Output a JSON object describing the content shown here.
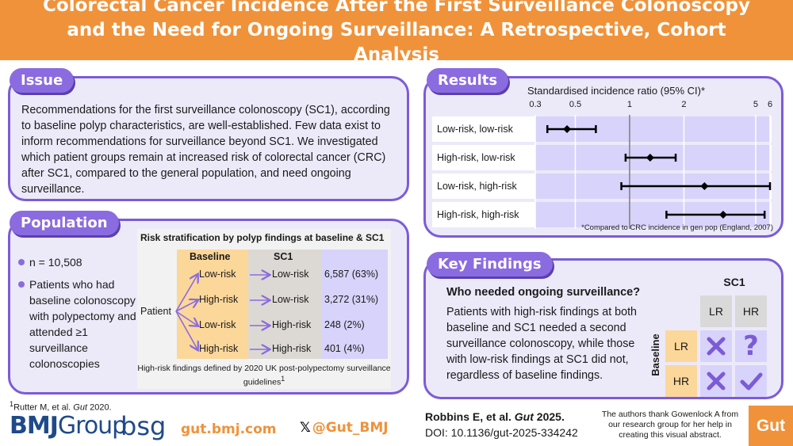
{
  "header": {
    "title": "Colorectal Cancer Incidence After the First Surveillance Colonoscopy and the Need for Ongoing Surveillance: A Retrospective, Cohort Analysis"
  },
  "issue": {
    "label": "Issue",
    "text": "Recommendations for the first surveillance colonoscopy (SC1), according to baseline polyp characteristics, are well-established. Few data exist to inform recommendations for surveillance beyond SC1. We investigated which patient groups remain at increased risk of colorectal cancer (CRC) after SC1, compared to the general population, and need ongoing surveillance."
  },
  "population": {
    "label": "Population",
    "bullets": [
      "n = 10,508",
      "Patients who had baseline colonoscopy with polypectomy and attended ≥1 surveillance colonoscopies"
    ],
    "strat_title": "Risk stratification by polyp findings at baseline & SC1",
    "col_baseline": "Baseline",
    "col_sc1": "SC1",
    "patient": "Patient",
    "rows": [
      {
        "baseline": "Low-risk",
        "sc1": "Low-risk",
        "count": "6,587 (63%)"
      },
      {
        "baseline": "High-risk",
        "sc1": "Low-risk",
        "count": "3,272 (31%)"
      },
      {
        "baseline": "Low-risk",
        "sc1": "High-risk",
        "count": "248 (2%)"
      },
      {
        "baseline": "High-risk",
        "sc1": "High-risk",
        "count": "401 (4%)"
      }
    ],
    "note": "High-risk findings defined by 2020 UK post-polypectomy surveillance guidelines",
    "note_sup": "1"
  },
  "results": {
    "label": "Results",
    "axis_title": "Standardised incidence ratio (95% CI)*",
    "ticks": [
      "0.3",
      "0.5",
      "1",
      "2",
      "5",
      "6"
    ],
    "footnote": "*Compared to CRC incidence in gen pop (England, 2007)"
  },
  "chart_data": {
    "type": "forest",
    "xlabel": "Standardised incidence ratio (95% CI)*",
    "xscale": "log",
    "xlim": [
      0.3,
      6
    ],
    "reference": 1,
    "grid": true,
    "categories": [
      "Low-risk, low-risk",
      "High-risk, low-risk",
      "Low-risk, high-risk",
      "High-risk, high-risk"
    ],
    "estimates": [
      0.45,
      1.3,
      2.6,
      3.3
    ],
    "lower": [
      0.35,
      0.95,
      0.9,
      1.6
    ],
    "upper": [
      0.65,
      1.8,
      6.0,
      5.6
    ]
  },
  "key_findings": {
    "label": "Key Findings",
    "question": "Who needed ongoing surveillance?",
    "text": "Patients with high-risk findings at both baseline and SC1 needed a second surveillance colonoscopy, while those with low-risk findings at SC1 did not, regardless of baseline findings.",
    "grid_title": "SC1",
    "grid_side": "Baseline",
    "lr": "LR",
    "hr": "HR",
    "question_mark": "?"
  },
  "footer": {
    "ref_sup": "1",
    "ref_text": "Rutter M, et al. ",
    "ref_journal": "Gut",
    "ref_year": " 2020.",
    "bmj": "BMJ",
    "group": "Group",
    "bsg": "bsg",
    "url": "gut.bmj.com",
    "handle": "@Gut_BMJ",
    "citation": "Robbins E, et al. ",
    "citation_journal": "Gut",
    "citation_year": " 2025.",
    "doi": "DOI: 10.1136/gut-2025-334242",
    "thanks": "The authors thank Gowenlock A from our research group for her help in creating this visual abstract.",
    "gut_logo": "Gut"
  },
  "colors": {
    "orange": "#f0923a",
    "purple": "#8b6be0",
    "panel": "#eceaf9",
    "check": "#7b5cd6"
  }
}
